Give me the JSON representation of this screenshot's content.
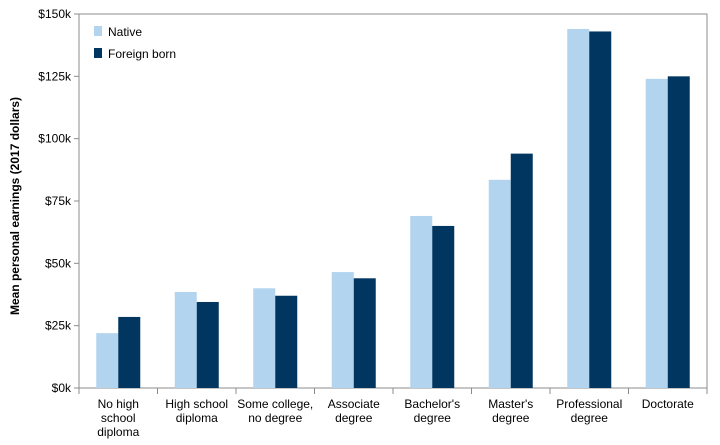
{
  "chart_data": {
    "type": "bar",
    "title": "",
    "xlabel": "",
    "ylabel": "Mean personal earnings (2017 dollars)",
    "ylim": [
      0,
      150000
    ],
    "yticks": [
      0,
      25000,
      50000,
      75000,
      100000,
      125000,
      150000
    ],
    "ytick_labels": [
      "$0k",
      "$25k",
      "$50k",
      "$75k",
      "$100k",
      "$125k",
      "$150k"
    ],
    "categories": [
      [
        "No high",
        "school",
        "diploma"
      ],
      [
        "High school",
        "diploma"
      ],
      [
        "Some college,",
        "no degree"
      ],
      [
        "Associate",
        "degree"
      ],
      [
        "Bachelor's",
        "degree"
      ],
      [
        "Master's",
        "degree"
      ],
      [
        "Professional",
        "degree"
      ],
      [
        "Doctorate"
      ]
    ],
    "series": [
      {
        "name": "Native",
        "color": "#b3d4ef",
        "values": [
          22000,
          38500,
          40000,
          46500,
          69000,
          83500,
          144000,
          124000
        ]
      },
      {
        "name": "Foreign born",
        "color": "#003660",
        "values": [
          28500,
          34500,
          37000,
          44000,
          65000,
          94000,
          143000,
          125000
        ]
      }
    ],
    "grid": false,
    "legend": "top-left"
  }
}
